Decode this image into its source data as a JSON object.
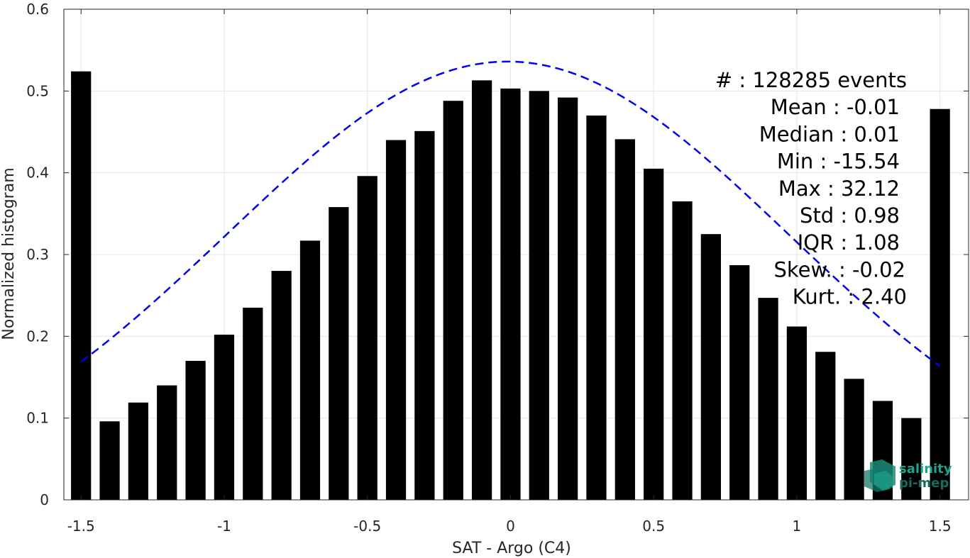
{
  "chart_data": {
    "type": "bar",
    "xlabel": "SAT - Argo (C4)",
    "ylabel": "Normalized histogram",
    "xlim": [
      -1.56,
      1.6
    ],
    "ylim": [
      0,
      0.6
    ],
    "grid": true,
    "x_ticks": [
      -1.5,
      -1,
      -0.5,
      0,
      0.5,
      1,
      1.5
    ],
    "x_tick_labels": [
      "-1.5",
      "-1",
      "-0.5",
      "0",
      "0.5",
      "1",
      "1.5"
    ],
    "y_ticks": [
      0,
      0.1,
      0.2,
      0.3,
      0.4,
      0.5,
      0.6
    ],
    "y_tick_labels": [
      "0",
      "0.1",
      "0.2",
      "0.3",
      "0.4",
      "0.5",
      "0.6"
    ],
    "bar_width": 0.07,
    "bars": [
      {
        "x": -1.5,
        "y": 0.524
      },
      {
        "x": -1.4,
        "y": 0.096
      },
      {
        "x": -1.3,
        "y": 0.119
      },
      {
        "x": -1.2,
        "y": 0.14
      },
      {
        "x": -1.1,
        "y": 0.17
      },
      {
        "x": -1.0,
        "y": 0.202
      },
      {
        "x": -0.9,
        "y": 0.235
      },
      {
        "x": -0.8,
        "y": 0.28
      },
      {
        "x": -0.7,
        "y": 0.317
      },
      {
        "x": -0.6,
        "y": 0.358
      },
      {
        "x": -0.5,
        "y": 0.396
      },
      {
        "x": -0.4,
        "y": 0.44
      },
      {
        "x": -0.3,
        "y": 0.451
      },
      {
        "x": -0.2,
        "y": 0.488
      },
      {
        "x": -0.1,
        "y": 0.513
      },
      {
        "x": 0.0,
        "y": 0.503
      },
      {
        "x": 0.1,
        "y": 0.5
      },
      {
        "x": 0.2,
        "y": 0.492
      },
      {
        "x": 0.3,
        "y": 0.47
      },
      {
        "x": 0.4,
        "y": 0.441
      },
      {
        "x": 0.5,
        "y": 0.405
      },
      {
        "x": 0.6,
        "y": 0.365
      },
      {
        "x": 0.7,
        "y": 0.325
      },
      {
        "x": 0.8,
        "y": 0.287
      },
      {
        "x": 0.9,
        "y": 0.247
      },
      {
        "x": 1.0,
        "y": 0.212
      },
      {
        "x": 1.1,
        "y": 0.181
      },
      {
        "x": 1.2,
        "y": 0.148
      },
      {
        "x": 1.3,
        "y": 0.121
      },
      {
        "x": 1.4,
        "y": 0.1
      },
      {
        "x": 1.5,
        "y": 0.478
      }
    ],
    "fit_curve": {
      "style": "dashed",
      "color": "#0000ee",
      "mean": -0.01,
      "std": 0.98,
      "peak": 0.536,
      "x_range": [
        -1.5,
        1.5
      ]
    },
    "bar_color": "#000000",
    "stats": [
      "#  : 128285 events",
      "Mean : -0.01",
      "Median : 0.01",
      "Min : -15.54",
      "Max : 32.12",
      "Std : 0.98",
      "IQR : 1.08",
      "Skew. : -0.02",
      "Kurt. : 2.40"
    ]
  },
  "logo": {
    "line1": "salinity",
    "line2": "pi-mep",
    "color": "#1aa58c"
  }
}
